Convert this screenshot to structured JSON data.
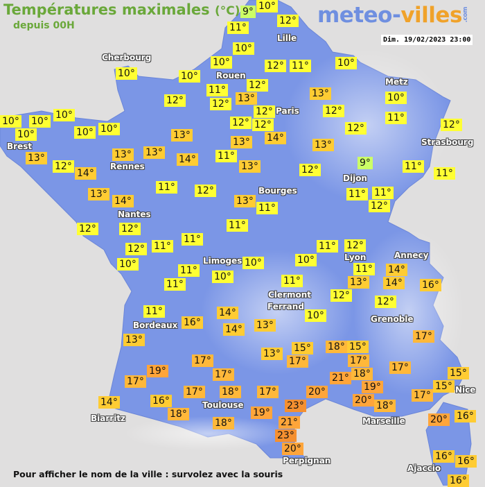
{
  "header": {
    "title": "Températures maximales",
    "unit": "(°C)",
    "subtitle": "depuis 00H",
    "logo_main": "meteo-",
    "logo_accent": "villes",
    "logo_suffix": ".com",
    "datetime": "Dim. 19/02/2023 23:00"
  },
  "footer": "Pour afficher le nom de la ville : survolez avec la souris",
  "colors": {
    "background": "#e0dfdf",
    "land": "#7b96e6",
    "le12": "#ffff33",
    "le9": "#ccff66",
    "13to16": "#ffcc33",
    "17to18": "#ffb83a",
    "19to21": "#ffa53a",
    "ge22": "#f59030"
  },
  "cities": [
    "Cherbourg",
    "Lille",
    "Rouen",
    "Paris",
    "Metz",
    "Strasbourg",
    "Brest",
    "Rennes",
    "Dijon",
    "Bourges",
    "Nantes",
    "Limoges",
    "Annecy",
    "Lyon",
    "Clermont",
    "Ferrand",
    "Grenoble",
    "Bordeaux",
    "Toulouse",
    "Biarritz",
    "Nice",
    "Marseille",
    "Perpignan",
    "Ajaccio"
  ],
  "temperatures": [
    "9°",
    "10°",
    "12°",
    "11°",
    "10°",
    "10°",
    "10°",
    "10°",
    "12°",
    "11°",
    "10°",
    "11°",
    "12°",
    "12°",
    "13°",
    "12°",
    "13°",
    "12°",
    "12°",
    "12°",
    "12°",
    "14°",
    "13°",
    "13°",
    "12°",
    "10°",
    "11°",
    "12°",
    "13°",
    "14°",
    "11°",
    "13°",
    "12°",
    "9°",
    "11°",
    "11°",
    "11°",
    "11°",
    "12°",
    "13°",
    "11°",
    "12°",
    "11°",
    "10°",
    "10°",
    "10°",
    "10°",
    "10°",
    "10°",
    "13°",
    "13°",
    "13°",
    "12°",
    "14°",
    "13°",
    "14°",
    "11°",
    "12°",
    "12°",
    "11°",
    "12°",
    "11°",
    "10°",
    "11°",
    "10°",
    "11°",
    "10°",
    "10°",
    "11°",
    "12°",
    "11°",
    "13°",
    "14°",
    "14°",
    "16°",
    "11°",
    "12°",
    "12°",
    "10°",
    "11°",
    "16°",
    "14°",
    "14°",
    "13°",
    "13°",
    "17°",
    "15°",
    "18°",
    "15°",
    "13°",
    "17°",
    "17°",
    "17°",
    "19°",
    "17°",
    "17°",
    "17°",
    "18°",
    "17°",
    "21°",
    "18°",
    "15°",
    "15°",
    "17°",
    "20°",
    "19°",
    "20°",
    "17°",
    "14°",
    "16°",
    "18°",
    "18°",
    "19°",
    "23°",
    "18°",
    "20°",
    "16°",
    "21°",
    "23°",
    "20°",
    "16°",
    "16°",
    "16°"
  ]
}
